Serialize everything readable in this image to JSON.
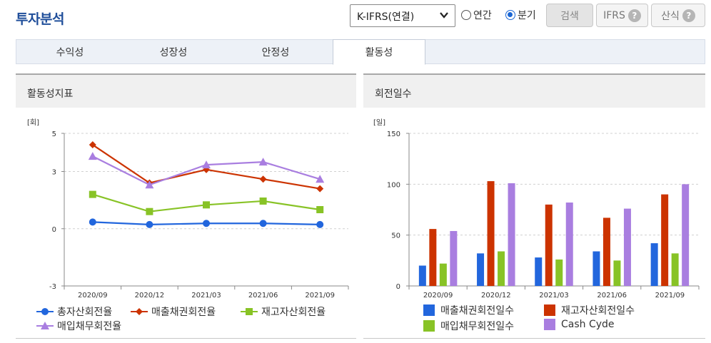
{
  "header": {
    "title": "투자분석",
    "select_value": "K-IFRS(연결)",
    "radio_annual": "연간",
    "radio_quarter": "분기",
    "search_label": "검색",
    "ifrs_label": "IFRS",
    "calc_label": "산식"
  },
  "tabs": [
    "수익성",
    "성장성",
    "안정성",
    "활동성"
  ],
  "active_tab": "활동성",
  "colors": {
    "blue": "#2266dd",
    "red": "#cc3300",
    "green": "#88c326",
    "purple": "#a97ee0",
    "title": "#1f4e9a"
  },
  "left_panel": {
    "title": "활동성지표"
  },
  "right_panel": {
    "title": "회전일수"
  },
  "chart_data": [
    {
      "type": "line",
      "unit_label": "[회]",
      "categories": [
        "2020/09",
        "2020/12",
        "2021/03",
        "2021/06",
        "2021/09"
      ],
      "yticks": [
        5,
        3,
        0,
        -3
      ],
      "ylim": [
        -3,
        5
      ],
      "legend": "bottom",
      "series": [
        {
          "name": "총자산회전율",
          "marker": "circle",
          "color": "#2266dd",
          "values": [
            0.35,
            0.22,
            0.28,
            0.28,
            0.22
          ]
        },
        {
          "name": "매출채권회전율",
          "marker": "diamond",
          "color": "#cc3300",
          "values": [
            4.4,
            2.4,
            3.1,
            2.6,
            2.1
          ]
        },
        {
          "name": "재고자산회전율",
          "marker": "square",
          "color": "#88c326",
          "values": [
            1.8,
            0.9,
            1.25,
            1.45,
            1.0
          ]
        },
        {
          "name": "매입채무회전율",
          "marker": "triangle",
          "color": "#a97ee0",
          "values": [
            3.8,
            2.3,
            3.35,
            3.5,
            2.6
          ]
        }
      ]
    },
    {
      "type": "bar",
      "unit_label": "[일]",
      "categories": [
        "2020/09",
        "2020/12",
        "2021/03",
        "2021/06",
        "2021/09"
      ],
      "yticks": [
        150,
        100,
        50,
        0
      ],
      "ylim": [
        0,
        150
      ],
      "legend": "bottom",
      "series": [
        {
          "name": "매출채권회전일수",
          "color": "#2266dd",
          "values": [
            20,
            32,
            28,
            34,
            42
          ]
        },
        {
          "name": "재고자산회전일수",
          "color": "#cc3300",
          "values": [
            56,
            103,
            80,
            67,
            90
          ]
        },
        {
          "name": "매입채무회전일수",
          "color": "#88c326",
          "values": [
            22,
            34,
            26,
            25,
            32
          ]
        },
        {
          "name": "Cash Cyde",
          "color": "#a97ee0",
          "values": [
            54,
            101,
            82,
            76,
            100
          ]
        }
      ]
    }
  ]
}
